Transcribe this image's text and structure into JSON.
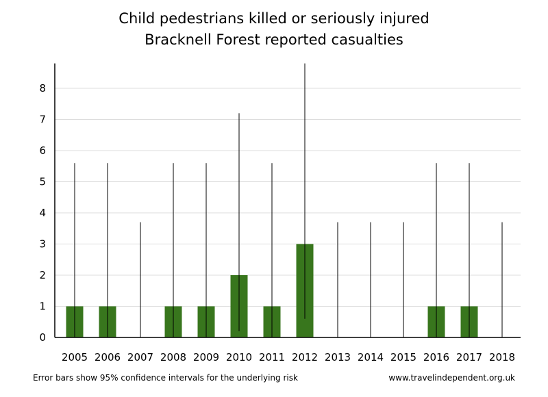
{
  "chart_data": {
    "type": "bar",
    "title": "Child pedestrians killed or seriously injured",
    "subtitle": "Bracknell Forest reported casualties",
    "categories": [
      "2005",
      "2006",
      "2007",
      "2008",
      "2009",
      "2010",
      "2011",
      "2012",
      "2013",
      "2014",
      "2015",
      "2016",
      "2017",
      "2018"
    ],
    "values": [
      1,
      1,
      0,
      1,
      1,
      2,
      1,
      3,
      0,
      0,
      0,
      1,
      1,
      0
    ],
    "error_lower": [
      0,
      0,
      0,
      0,
      0,
      0.2,
      0,
      0.6,
      0,
      0,
      0,
      0,
      0,
      0
    ],
    "error_upper": [
      5.6,
      5.6,
      3.7,
      5.6,
      5.6,
      7.2,
      5.6,
      8.8,
      3.7,
      3.7,
      3.7,
      5.6,
      5.6,
      3.7
    ],
    "ylim": [
      0,
      8.8
    ],
    "yticks": [
      0,
      1,
      2,
      3,
      4,
      5,
      6,
      7,
      8
    ],
    "grid": true,
    "bar_color": "#38761d",
    "xlabel": "",
    "ylabel": ""
  },
  "footer": {
    "note": "Error bars show 95% confidence intervals for the underlying risk",
    "source": "www.travelindependent.org.uk"
  }
}
